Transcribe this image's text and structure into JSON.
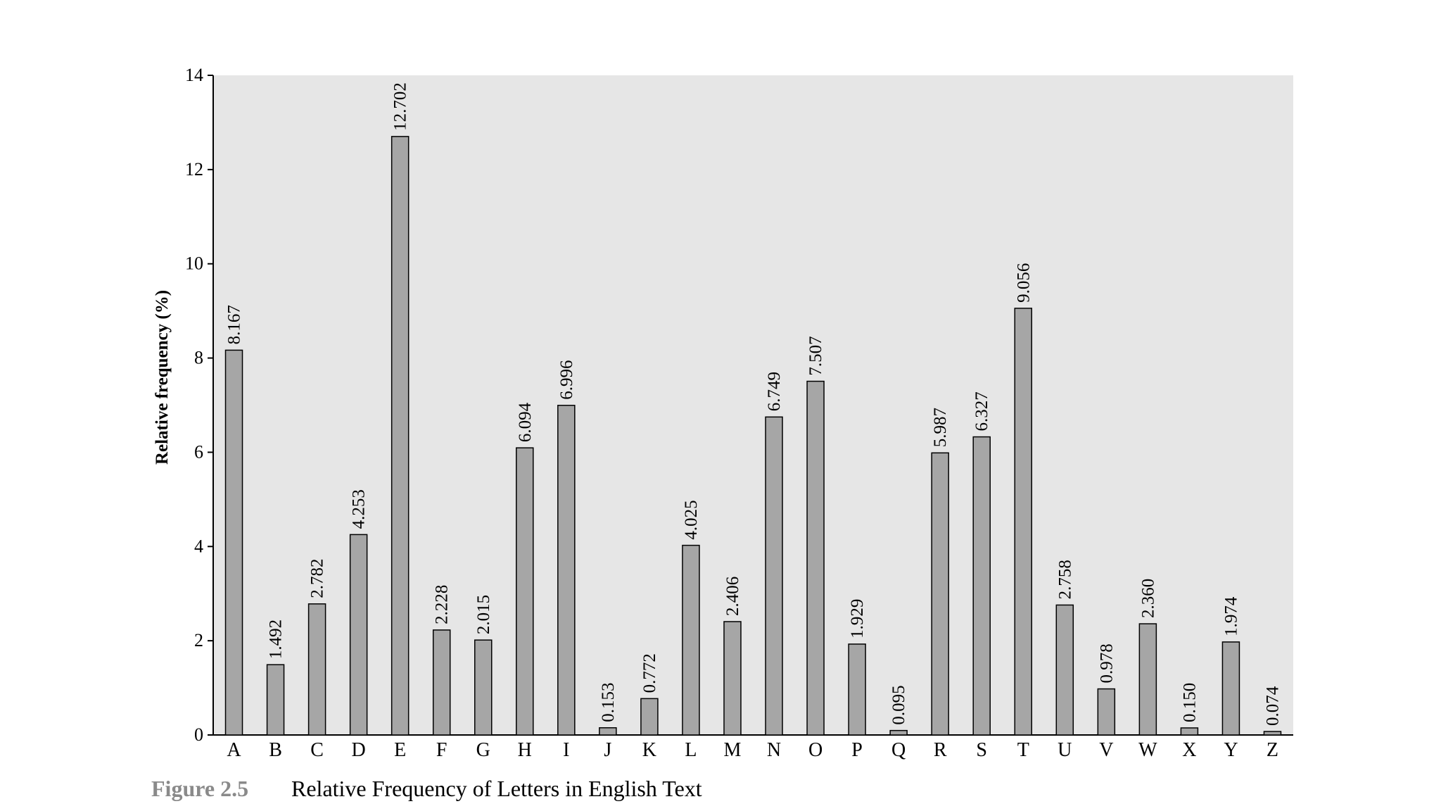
{
  "chart_data": {
    "type": "bar",
    "figure_label": "Figure 2.5",
    "title": "Relative Frequency of Letters in English Text",
    "y_label": "Relative frequency (%)",
    "categories": [
      "A",
      "B",
      "C",
      "D",
      "E",
      "F",
      "G",
      "H",
      "I",
      "J",
      "K",
      "L",
      "M",
      "N",
      "O",
      "P",
      "Q",
      "R",
      "S",
      "T",
      "U",
      "V",
      "W",
      "X",
      "Y",
      "Z"
    ],
    "values": [
      8.167,
      1.492,
      2.782,
      4.253,
      12.702,
      2.228,
      2.015,
      6.094,
      6.996,
      0.153,
      0.772,
      4.025,
      2.406,
      6.749,
      7.507,
      1.929,
      0.095,
      5.987,
      6.327,
      9.056,
      2.758,
      0.978,
      2.36,
      0.15,
      1.974,
      0.074
    ],
    "value_labels": [
      "8.167",
      "1.492",
      "2.782",
      "4.253",
      "12.702",
      "2.228",
      "2.015",
      "6.094",
      "6.996",
      "0.153",
      "0.772",
      "4.025",
      "2.406",
      "6.749",
      "7.507",
      "1.929",
      "0.095",
      "5.987",
      "6.327",
      "9.056",
      "2.758",
      "0.978",
      "2.360",
      "0.150",
      "1.974",
      "0.074"
    ],
    "color": "#a6a6a6",
    "ylim": [
      0,
      14
    ],
    "yticks": [
      0,
      2,
      4,
      6,
      8,
      10,
      12,
      14
    ],
    "grid": false
  }
}
